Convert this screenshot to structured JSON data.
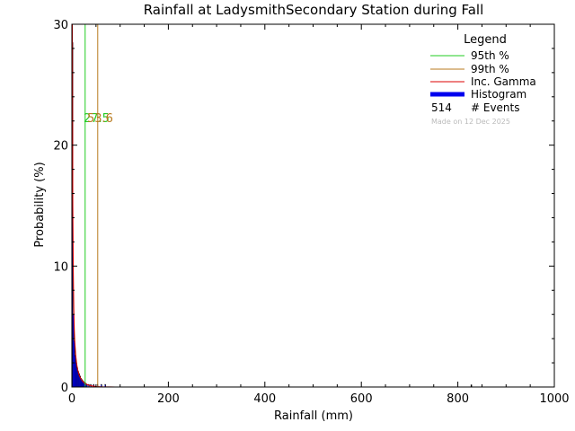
{
  "chart_data": {
    "type": "bar",
    "title": "Rainfall at LadysmithSecondary Station during Fall",
    "xlabel": "Rainfall (mm)",
    "ylabel": "Probability (%)",
    "xlim": [
      0,
      1000
    ],
    "ylim": [
      0,
      30
    ],
    "xticks": [
      0,
      200,
      400,
      600,
      800,
      1000
    ],
    "yticks": [
      0,
      10,
      20,
      30
    ],
    "grid": false,
    "legend_position": "top-right",
    "legend": {
      "title": "Legend",
      "entries": [
        {
          "label": "95th %",
          "color": "#22cc22",
          "style": "line"
        },
        {
          "label": "99th %",
          "color": "#b87a1e",
          "style": "line"
        },
        {
          "label": "Inc. Gamma",
          "color": "#dd0000",
          "style": "line"
        },
        {
          "label": "Histogram",
          "color": "#0000ee",
          "style": "bar"
        }
      ],
      "events_count": "514",
      "events_label": "# Events",
      "made_on": "Made on 12 Dec 2025"
    },
    "percentile_lines": [
      {
        "name": "95th %",
        "x": 27.5,
        "label": "27.5",
        "color": "#22cc22"
      },
      {
        "name": "99th %",
        "x": 53.6,
        "label": "53.6",
        "color": "#b87a1e"
      }
    ],
    "histogram": {
      "color": "#0000ee",
      "bins": [
        {
          "x0": 0,
          "x1": 2,
          "value": 28.5
        },
        {
          "x0": 2,
          "x1": 4,
          "value": 6.0
        },
        {
          "x0": 4,
          "x1": 6,
          "value": 3.8
        },
        {
          "x0": 6,
          "x1": 8,
          "value": 2.6
        },
        {
          "x0": 8,
          "x1": 10,
          "value": 2.0
        },
        {
          "x0": 10,
          "x1": 12,
          "value": 1.6
        },
        {
          "x0": 12,
          "x1": 14,
          "value": 1.3
        },
        {
          "x0": 14,
          "x1": 16,
          "value": 1.1
        },
        {
          "x0": 16,
          "x1": 18,
          "value": 0.9
        },
        {
          "x0": 18,
          "x1": 20,
          "value": 0.7
        },
        {
          "x0": 20,
          "x1": 22,
          "value": 0.6
        },
        {
          "x0": 22,
          "x1": 24,
          "value": 0.5
        },
        {
          "x0": 24,
          "x1": 26,
          "value": 0.4
        },
        {
          "x0": 26,
          "x1": 28,
          "value": 0.3
        },
        {
          "x0": 28,
          "x1": 30,
          "value": 0.3
        },
        {
          "x0": 30,
          "x1": 32,
          "value": 0.2
        },
        {
          "x0": 34,
          "x1": 36,
          "value": 0.2
        },
        {
          "x0": 38,
          "x1": 40,
          "value": 0.2
        },
        {
          "x0": 44,
          "x1": 46,
          "value": 0.2
        },
        {
          "x0": 52,
          "x1": 54,
          "value": 0.2
        },
        {
          "x0": 60,
          "x1": 62,
          "value": 0.2
        },
        {
          "x0": 68,
          "x1": 70,
          "value": 0.2
        }
      ]
    },
    "gamma_curve": {
      "color": "#dd0000",
      "points": [
        [
          1,
          30
        ],
        [
          2,
          15
        ],
        [
          3,
          9.5
        ],
        [
          4,
          6.5
        ],
        [
          5,
          4.8
        ],
        [
          6,
          3.8
        ],
        [
          8,
          2.6
        ],
        [
          10,
          1.9
        ],
        [
          12,
          1.45
        ],
        [
          15,
          1.0
        ],
        [
          18,
          0.72
        ],
        [
          22,
          0.48
        ],
        [
          26,
          0.33
        ],
        [
          30,
          0.23
        ],
        [
          35,
          0.15
        ],
        [
          40,
          0.1
        ],
        [
          50,
          0.04
        ],
        [
          60,
          0.02
        ],
        [
          80,
          0.005
        ],
        [
          100,
          0.0
        ],
        [
          1000,
          0.0
        ]
      ]
    },
    "outlier_ticks": [
      {
        "x": 828,
        "value": 0.2
      }
    ]
  }
}
